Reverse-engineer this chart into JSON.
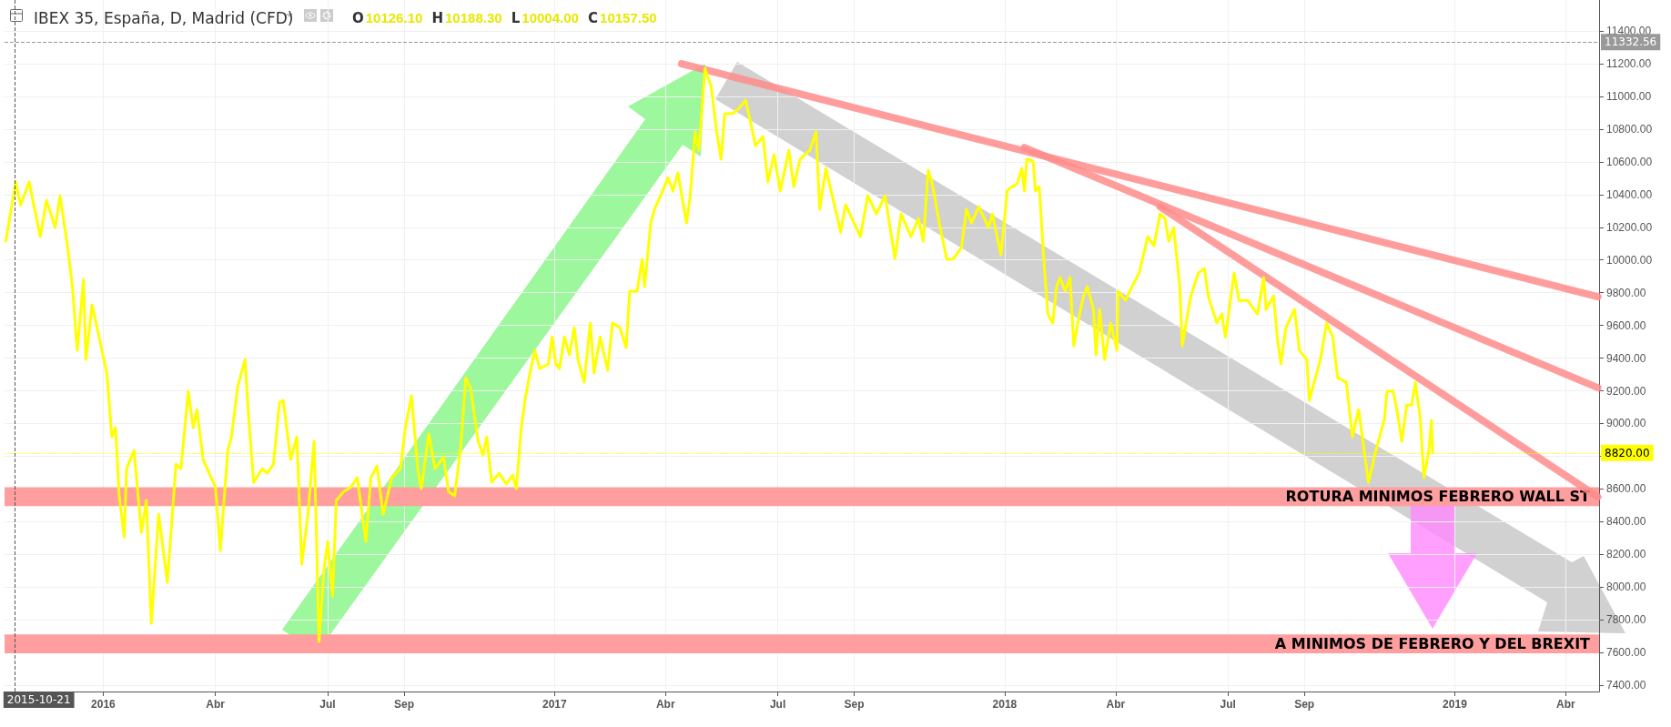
{
  "chart_data": {
    "type": "line",
    "title": "IBEX 35, España, D, Madrid (CFD)",
    "subtitle": "O10126.10 H10188.30 L10004.00 C10157.50",
    "x": [
      "2015-10-14",
      "2015-10-22",
      "2015-10-26",
      "2015-11-02",
      "2015-11-06",
      "2015-11-11",
      "2015-11-16",
      "2015-11-23",
      "2015-11-27",
      "2015-12-03",
      "2015-12-07",
      "2015-12-11",
      "2015-12-16",
      "2015-12-18",
      "2015-12-23",
      "2016-01-04",
      "2016-01-08",
      "2016-01-11",
      "2016-01-14",
      "2016-01-18",
      "2016-01-20",
      "2016-01-26",
      "2016-02-01",
      "2016-02-05",
      "2016-02-09",
      "2016-02-15",
      "2016-02-22",
      "2016-02-29",
      "2016-03-04",
      "2016-03-10",
      "2016-03-14",
      "2016-03-17",
      "2016-03-22",
      "2016-04-01",
      "2016-04-05",
      "2016-04-11",
      "2016-04-14",
      "2016-04-19",
      "2016-04-25",
      "2016-04-28",
      "2016-05-02",
      "2016-05-09",
      "2016-05-13",
      "2016-05-18",
      "2016-05-23",
      "2016-05-26",
      "2016-06-01",
      "2016-06-06",
      "2016-06-10",
      "2016-06-15",
      "2016-06-20",
      "2016-06-24",
      "2016-06-28",
      "2016-07-01",
      "2016-07-05",
      "2016-07-08",
      "2016-07-14",
      "2016-07-20",
      "2016-07-25",
      "2016-08-01",
      "2016-08-05",
      "2016-08-10",
      "2016-08-15",
      "2016-08-22",
      "2016-08-29",
      "2016-09-02",
      "2016-09-07",
      "2016-09-12",
      "2016-09-15",
      "2016-09-21",
      "2016-09-26",
      "2016-10-03",
      "2016-10-07",
      "2016-10-12",
      "2016-10-17",
      "2016-10-21",
      "2016-10-25",
      "2016-10-31",
      "2016-11-04",
      "2016-11-07",
      "2016-11-11",
      "2016-11-17",
      "2016-11-23",
      "2016-11-28",
      "2016-12-01",
      "2016-12-05",
      "2016-12-08",
      "2016-12-12",
      "2016-12-16",
      "2016-12-20",
      "2016-12-27",
      "2016-12-30",
      "2017-01-02",
      "2017-01-05",
      "2017-01-09",
      "2017-01-13",
      "2017-01-17",
      "2017-01-20",
      "2017-01-25",
      "2017-01-30",
      "2017-02-02",
      "2017-02-07",
      "2017-02-13",
      "2017-02-17",
      "2017-02-23",
      "2017-02-28",
      "2017-03-03",
      "2017-03-09",
      "2017-03-13",
      "2017-03-15",
      "2017-03-20",
      "2017-03-23",
      "2017-03-28",
      "2017-04-03",
      "2017-04-07",
      "2017-04-11",
      "2017-04-18",
      "2017-04-21",
      "2017-04-25",
      "2017-04-28",
      "2017-05-03",
      "2017-05-08",
      "2017-05-12",
      "2017-05-16",
      "2017-05-19",
      "2017-05-25",
      "2017-05-30",
      "2017-06-05",
      "2017-06-09",
      "2017-06-13",
      "2017-06-19",
      "2017-06-23",
      "2017-06-28",
      "2017-07-03",
      "2017-07-10",
      "2017-07-14",
      "2017-07-19",
      "2017-07-27",
      "2017-08-01",
      "2017-08-04",
      "2017-08-09",
      "2017-08-15",
      "2017-08-21",
      "2017-08-25",
      "2017-09-06",
      "2017-09-12",
      "2017-09-19",
      "2017-09-26",
      "2017-10-04",
      "2017-10-09",
      "2017-10-17",
      "2017-10-23",
      "2017-10-27",
      "2017-10-31",
      "2017-11-03",
      "2017-11-09",
      "2017-11-15",
      "2017-11-20",
      "2017-11-27",
      "2017-12-01",
      "2017-12-05",
      "2017-12-11",
      "2017-12-19",
      "2017-12-22",
      "2017-12-29",
      "2018-01-03",
      "2018-01-05",
      "2018-01-11",
      "2018-01-15",
      "2018-01-17",
      "2018-01-19",
      "2018-01-24",
      "2018-01-26",
      "2018-01-29",
      "2018-02-02",
      "2018-02-05",
      "2018-02-09",
      "2018-02-12",
      "2018-02-15",
      "2018-02-19",
      "2018-02-23",
      "2018-02-26",
      "2018-03-02",
      "2018-03-06",
      "2018-03-09",
      "2018-03-14",
      "2018-03-16",
      "2018-03-19",
      "2018-03-23",
      "2018-03-28",
      "2018-04-02",
      "2018-04-03",
      "2018-04-09",
      "2018-04-16",
      "2018-04-20",
      "2018-04-27",
      "2018-05-02",
      "2018-05-07",
      "2018-05-11",
      "2018-05-14",
      "2018-05-18",
      "2018-05-23",
      "2018-05-25",
      "2018-05-30",
      "2018-06-01",
      "2018-06-07",
      "2018-06-12",
      "2018-06-15",
      "2018-06-22",
      "2018-06-26",
      "2018-06-29",
      "2018-07-06",
      "2018-07-10",
      "2018-07-17",
      "2018-07-25",
      "2018-07-30",
      "2018-08-01",
      "2018-08-07",
      "2018-08-10",
      "2018-08-13",
      "2018-08-17",
      "2018-08-24",
      "2018-08-28",
      "2018-09-03",
      "2018-09-05",
      "2018-09-10",
      "2018-09-14",
      "2018-09-19",
      "2018-09-24",
      "2018-09-28",
      "2018-10-05",
      "2018-10-10",
      "2018-10-15",
      "2018-10-19",
      "2018-10-23",
      "2018-10-29",
      "2018-11-05",
      "2018-11-07",
      "2018-11-12",
      "2018-11-15",
      "2018-11-19",
      "2018-11-23",
      "2018-11-27",
      "2018-11-30",
      "2018-12-04",
      "2018-12-07",
      "2018-12-11",
      "2018-12-13",
      "2018-12-14"
    ],
    "series": [
      {
        "color": "#ffff00",
        "values": [
          10115,
          10477,
          10337,
          10477,
          10326,
          10143,
          10365,
          10198,
          10393,
          10087,
          9837,
          9447,
          9881,
          9391,
          9725,
          9308,
          8918,
          8974,
          8557,
          8306,
          8724,
          8835,
          8334,
          8529,
          7778,
          8445,
          8028,
          8751,
          8724,
          9197,
          8974,
          9085,
          8779,
          8612,
          8223,
          8835,
          8918,
          9224,
          9391,
          9030,
          8640,
          8724,
          8696,
          8751,
          9130,
          9141,
          8779,
          8918,
          8139,
          8445,
          8891,
          7666,
          8111,
          8278,
          7944,
          8529,
          8584,
          8612,
          8668,
          8278,
          8668,
          8740,
          8445,
          8668,
          8724,
          8974,
          9169,
          8724,
          8601,
          8935,
          8724,
          8796,
          8584,
          8557,
          8863,
          9280,
          9213,
          8891,
          8807,
          8918,
          8640,
          8696,
          8629,
          8685,
          8601,
          8974,
          9141,
          9308,
          9447,
          9336,
          9364,
          9530,
          9364,
          9336,
          9530,
          9419,
          9586,
          9391,
          9252,
          9614,
          9308,
          9530,
          9325,
          9614,
          9586,
          9464,
          9809,
          9809,
          10004,
          9837,
          10226,
          10310,
          10393,
          10504,
          10421,
          10532,
          10226,
          10393,
          10783,
          10671,
          11172,
          11061,
          10810,
          10616,
          10894,
          10894,
          10922,
          10977,
          10838,
          10699,
          10755,
          10477,
          10644,
          10421,
          10671,
          10449,
          10616,
          10671,
          10783,
          10310,
          10560,
          10365,
          10170,
          10337,
          10143,
          10393,
          10282,
          10393,
          10008,
          10282,
          10143,
          10254,
          10115,
          10549,
          10477,
          10226,
          10004,
          10004,
          10076,
          10310,
          10226,
          10326,
          10198,
          10282,
          10031,
          10421,
          10438,
          10466,
          10560,
          10421,
          10616,
          10605,
          10421,
          10449,
          9976,
          9670,
          9614,
          9837,
          9893,
          9809,
          9893,
          9475,
          9642,
          9781,
          9837,
          9697,
          9419,
          9697,
          9391,
          9614,
          9447,
          9809,
          9753,
          9864,
          9920,
          10143,
          10087,
          10282,
          10254,
          10115,
          10198,
          9837,
          9475,
          9697,
          9781,
          9920,
          9948,
          9781,
          9614,
          9670,
          9530,
          9920,
          9753,
          9753,
          9670,
          9893,
          9697,
          9781,
          9530,
          9364,
          9586,
          9697,
          9447,
          9391,
          9141,
          9280,
          9391,
          9614,
          9530,
          9280,
          9252,
          8918,
          9085,
          8863,
          8640,
          8835,
          9030,
          9197,
          9197,
          9085,
          8891,
          9113,
          9113,
          9252,
          9030,
          8668,
          8835,
          9019,
          8820
        ]
      },
      {
        "type": "line",
        "color": "#ff8c8c",
        "x": [
          "2017-04-14",
          "2019-04-27"
        ],
        "values": [
          11200,
          9775
        ]
      },
      {
        "type": "line",
        "color": "#ff8c8c",
        "x": [
          "2018-01-17",
          "2019-04-27"
        ],
        "values": [
          10688,
          9219
        ]
      },
      {
        "type": "line",
        "color": "#ff8c8c",
        "x": [
          "2018-05-07",
          "2019-04-27"
        ],
        "values": [
          10326,
          8551
        ]
      }
    ],
    "xlim": [
      "2015-10-13",
      "2019-04-28"
    ],
    "xticks": [
      {
        "value": "2016-01-01",
        "label": "2016"
      },
      {
        "value": "2016-04-01",
        "label": "Abr"
      },
      {
        "value": "2016-07-01",
        "label": "Jul"
      },
      {
        "value": "2016-09-01",
        "label": "Sep"
      },
      {
        "value": "2017-01-01",
        "label": "2017"
      },
      {
        "value": "2017-04-01",
        "label": "Abr"
      },
      {
        "value": "2017-07-01",
        "label": "Jul"
      },
      {
        "value": "2017-09-01",
        "label": "Sep"
      },
      {
        "value": "2018-01-01",
        "label": "2018"
      },
      {
        "value": "2018-04-01",
        "label": "Abr"
      },
      {
        "value": "2018-07-01",
        "label": "Jul"
      },
      {
        "value": "2018-09-01",
        "label": "Sep"
      },
      {
        "value": "2019-01-01",
        "label": "2019"
      },
      {
        "value": "2019-04-01",
        "label": "Abr"
      }
    ],
    "ylim": [
      7361,
      11590
    ],
    "yticks": [
      {
        "value": 7400,
        "label": "7400.00"
      },
      {
        "value": 7600,
        "label": "7600.00"
      },
      {
        "value": 7800,
        "label": "7800.00"
      },
      {
        "value": 8000,
        "label": "8000.00"
      },
      {
        "value": 8200,
        "label": "8200.00"
      },
      {
        "value": 8400,
        "label": "8400.00"
      },
      {
        "value": 8600,
        "label": "8600.00"
      },
      {
        "value": 8800,
        "label": null
      },
      {
        "value": 9000,
        "label": "9000.00"
      },
      {
        "value": 9200,
        "label": "9200.00"
      },
      {
        "value": 9400,
        "label": "9400.00"
      },
      {
        "value": 9600,
        "label": "9600.00"
      },
      {
        "value": 9800,
        "label": "9800.00"
      },
      {
        "value": 10000,
        "label": "10000.00"
      },
      {
        "value": 10200,
        "label": "10200.00"
      },
      {
        "value": 10400,
        "label": "10400.00"
      },
      {
        "value": 10600,
        "label": "10600.00"
      },
      {
        "value": 10800,
        "label": "10800.00"
      },
      {
        "value": 11000,
        "label": "11000.00"
      },
      {
        "value": 11200,
        "label": "11200.00"
      },
      {
        "value": 11400,
        "label": "11400.00"
      }
    ],
    "ref_lines": [
      {
        "axis": "y",
        "value": 11332.56,
        "label": "11332.56",
        "color": "#999999",
        "line_style": "dashed"
      },
      {
        "axis": "y",
        "value": 8820,
        "label": "8820.00",
        "color": "#ffff00",
        "line_style": "dotted"
      },
      {
        "axis": "x",
        "value": "2015-10-21",
        "label": "2015-10-21",
        "color": "#555555",
        "line_style": "dashed"
      }
    ],
    "bands": [
      {
        "axis": "y",
        "from": 7595,
        "to": 7710,
        "label": "A MINIMOS DE FEBRERO Y DEL BREXIT",
        "color": "#ff9e9e"
      },
      {
        "axis": "y",
        "from": 8495,
        "to": 8610,
        "label": "ROTURA MINIMOS FEBRERO WALL ST",
        "color": "#ff9e9e"
      }
    ],
    "grid": true,
    "marker": "none",
    "line_style": "solid"
  }
}
